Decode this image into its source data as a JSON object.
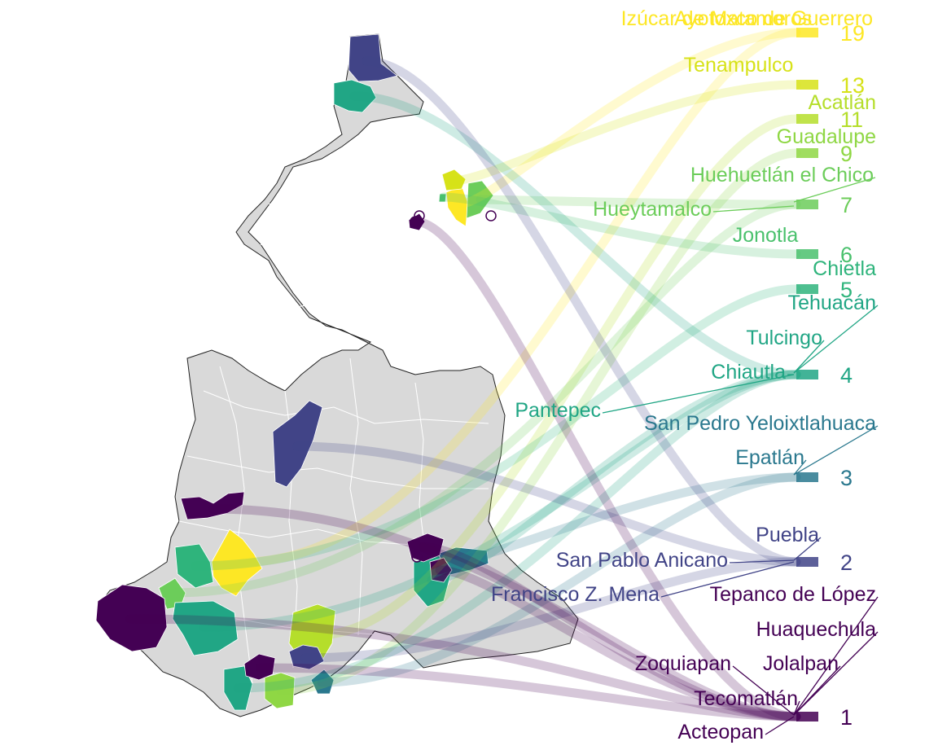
{
  "chart_data": {
    "type": "map",
    "colormap": "viridis",
    "grid": false,
    "legend": "none",
    "region_color": "#d9d9d9",
    "border_color": "#ffffff",
    "values": [
      {
        "value": "19",
        "color": "#fde725"
      },
      {
        "value": "13",
        "color": "#d7e219"
      },
      {
        "value": "11",
        "color": "#b5de2b"
      },
      {
        "value": "9",
        "color": "#8fd744"
      },
      {
        "value": "7",
        "color": "#6ccd5a"
      },
      {
        "value": "6",
        "color": "#4ac16d"
      },
      {
        "value": "5",
        "color": "#2fb47c"
      },
      {
        "value": "4",
        "color": "#21a685"
      },
      {
        "value": "3",
        "color": "#2a788e"
      },
      {
        "value": "2",
        "color": "#414487"
      },
      {
        "value": "1",
        "color": "#440154"
      }
    ],
    "municipalities": [
      {
        "name": "Izúcar de Matamoros",
        "value": 19,
        "color": "#fde725"
      },
      {
        "name": "Ayotoxco de Guerrero",
        "value": 19,
        "color": "#fde725"
      },
      {
        "name": "Tenampulco",
        "value": 13,
        "color": "#d7e219"
      },
      {
        "name": "Acatlán",
        "value": 11,
        "color": "#b5de2b"
      },
      {
        "name": "Guadalupe",
        "value": 9,
        "color": "#8fd744"
      },
      {
        "name": "Huehuetlán el Chico",
        "value": 7,
        "color": "#6ccd5a"
      },
      {
        "name": "Hueytamalco",
        "value": 7,
        "color": "#6ccd5a"
      },
      {
        "name": "Jonotla",
        "value": 6,
        "color": "#4ac16d"
      },
      {
        "name": "Chietla",
        "value": 5,
        "color": "#2fb47c"
      },
      {
        "name": "Tehuacán",
        "value": 4,
        "color": "#21a685"
      },
      {
        "name": "Tulcingo",
        "value": 4,
        "color": "#21a685"
      },
      {
        "name": "Chiautla",
        "value": 4,
        "color": "#21a685"
      },
      {
        "name": "Pantepec",
        "value": 4,
        "color": "#21a685"
      },
      {
        "name": "San Pedro Yeloixtlahuaca",
        "value": 3,
        "color": "#2a788e"
      },
      {
        "name": "Epatlán",
        "value": 3,
        "color": "#2a788e"
      },
      {
        "name": "Puebla",
        "value": 2,
        "color": "#414487"
      },
      {
        "name": "San Pablo Anicano",
        "value": 2,
        "color": "#414487"
      },
      {
        "name": "Francisco Z. Mena",
        "value": 2,
        "color": "#414487"
      },
      {
        "name": "Tepanco de López",
        "value": 1,
        "color": "#440154"
      },
      {
        "name": "Huaquechula",
        "value": 1,
        "color": "#440154"
      },
      {
        "name": "Zoquiapan",
        "value": 1,
        "color": "#440154"
      },
      {
        "name": "Jolalpan",
        "value": 1,
        "color": "#440154"
      },
      {
        "name": "Tecomatlán",
        "value": 1,
        "color": "#440154"
      },
      {
        "name": "Acteopan",
        "value": 1,
        "color": "#440154"
      }
    ]
  }
}
